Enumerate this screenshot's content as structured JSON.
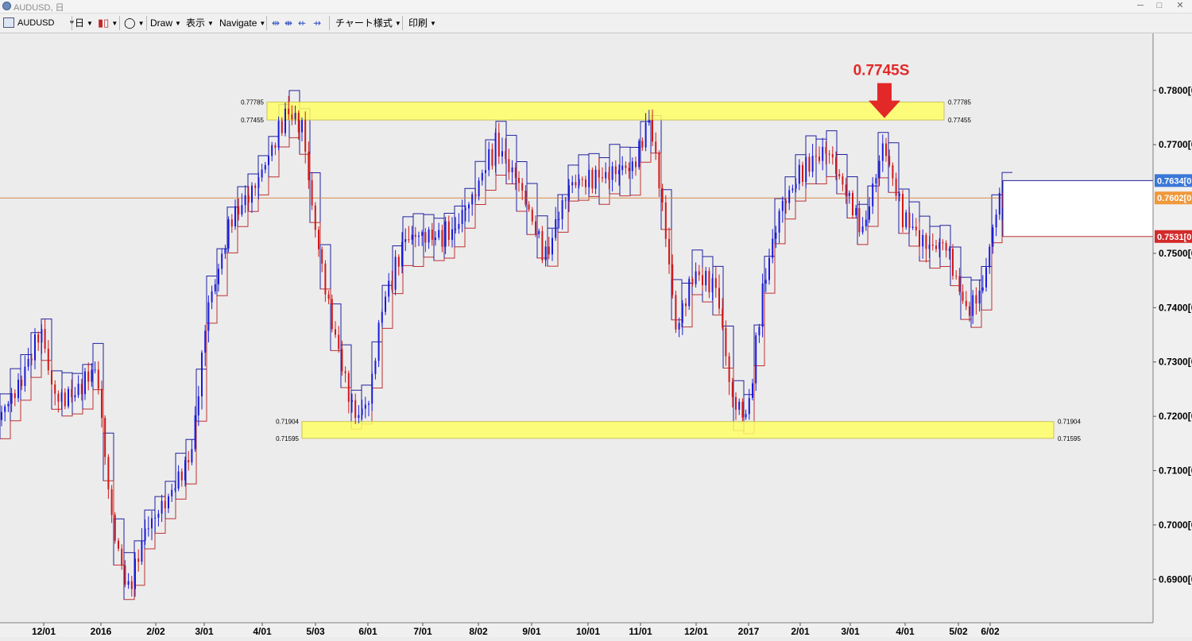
{
  "window": {
    "title": "AUDUSD, 日",
    "minimize": "─",
    "maximize": "□",
    "close": "✕"
  },
  "toolbar": {
    "symbol": "AUDUSD",
    "timeframe": "日",
    "draw_label": "Draw",
    "view_label": "表示",
    "navigate_label": "Navigate",
    "chart_style_label": "チャート様式",
    "print_label": "印刷"
  },
  "chart_data": {
    "type": "candlestick",
    "symbol": "AUDUSD",
    "ylim": [
      0.682,
      0.7905
    ],
    "y_ticks": [
      "0.7800[0",
      "0.7700[0",
      "0.7500[0",
      "0.7400[0",
      "0.7300[0",
      "0.7200[0",
      "0.7100[0",
      "0.7000[0",
      "0.6900[0"
    ],
    "x_ticks": [
      "12/01",
      "2016",
      "2/02",
      "3/01",
      "4/01",
      "5/03",
      "6/01",
      "7/01",
      "8/02",
      "9/01",
      "10/01",
      "11/01",
      "12/01",
      "2017",
      "2/01",
      "3/01",
      "4/01",
      "5/02",
      "6/02"
    ],
    "price_tags": [
      {
        "label": "0.7634[0",
        "value": 0.7634,
        "color": "#3a78d8"
      },
      {
        "label": "0.7602[0",
        "value": 0.7602,
        "color": "#f0983a"
      },
      {
        "label": "0.7531[0",
        "value": 0.7531,
        "color": "#d42a2a"
      }
    ],
    "current_price": 0.7602,
    "zones": [
      {
        "high": 0.77785,
        "low": 0.77455,
        "high_label": "0.77785",
        "low_label": "0.77455"
      },
      {
        "high": 0.71904,
        "low": 0.71595,
        "high_label": "0.71904",
        "low_label": "0.71595"
      }
    ],
    "annotation": {
      "text": "0.7745S",
      "color": "#e32828"
    },
    "colors": {
      "up": "#1a1adc",
      "down": "#d01818",
      "upper_box": "#2020a0",
      "lower_box": "#c03030",
      "zone": "#ffff66"
    }
  }
}
